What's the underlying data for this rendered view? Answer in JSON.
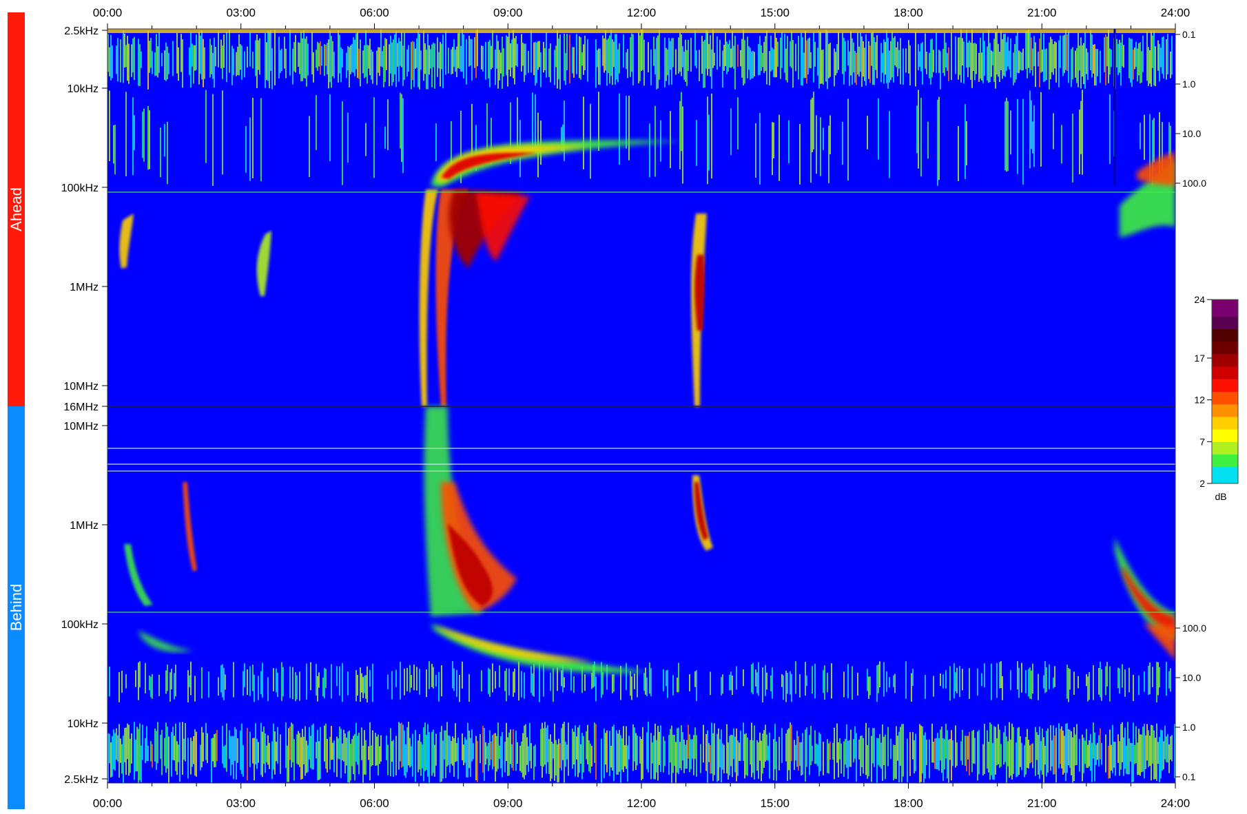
{
  "chart_data": {
    "type": "heatmap",
    "title": "",
    "colorbar_unit": "dB",
    "colorbar_ticks": [
      "24",
      "17",
      "12",
      "7",
      "2"
    ],
    "colorbar_range": [
      2,
      24
    ],
    "colormap": [
      "#00e0f0",
      "#40f040",
      "#b0f020",
      "#ffff00",
      "#ffd000",
      "#ff9000",
      "#ff5000",
      "#ff1000",
      "#d00000",
      "#a00000",
      "#700000",
      "#500000",
      "#5a0050",
      "#7a0070"
    ],
    "background_color": "#0000ff",
    "x_axis": {
      "ticks": [
        "00:00",
        "03:00",
        "06:00",
        "09:00",
        "12:00",
        "15:00",
        "18:00",
        "21:00",
        "24:00"
      ],
      "range_hours": [
        0,
        24
      ]
    },
    "panels": [
      {
        "name": "Ahead",
        "color": "#ff1a0a",
        "y_ticks_left": [
          "2.5kHz",
          "10kHz",
          "100kHz",
          "1MHz",
          "10MHz",
          "16MHz"
        ],
        "y_ticks_right": [
          "0.1",
          "1.0",
          "10.0",
          "100.0"
        ]
      },
      {
        "name": "Behind",
        "color": "#0a8cff",
        "y_ticks_left": [
          "10MHz",
          "1MHz",
          "100kHz",
          "10kHz",
          "2.5kHz"
        ],
        "y_ticks_right": [
          "100.0",
          "10.0",
          "1.0",
          "0.1"
        ]
      }
    ],
    "events_ahead": [
      {
        "t_hours": 0.4,
        "f_start": "400kHz",
        "f_end": "900kHz",
        "peak_db": 14
      },
      {
        "t_hours": 3.4,
        "f_start": "300kHz",
        "f_end": "1.3MHz",
        "peak_db": 12
      },
      {
        "t_hours": 7.5,
        "f_start": "60kHz",
        "f_end": "16MHz",
        "peak_db": 22
      },
      {
        "t_hours": 13.3,
        "f_start": "250kHz",
        "f_end": "16MHz",
        "peak_db": 18
      },
      {
        "t_hours": 23.5,
        "f_start": "30kHz",
        "f_end": "300kHz",
        "peak_db": 16
      }
    ],
    "events_behind": [
      {
        "t_hours": 0.6,
        "f_start": "100kHz",
        "f_end": "500kHz",
        "peak_db": 10
      },
      {
        "t_hours": 1.8,
        "f_start": "300kHz",
        "f_end": "5MHz",
        "peak_db": 13
      },
      {
        "t_hours": 7.8,
        "f_start": "40kHz",
        "f_end": "16MHz",
        "peak_db": 23
      },
      {
        "t_hours": 13.4,
        "f_start": "200kHz",
        "f_end": "16MHz",
        "peak_db": 18
      },
      {
        "t_hours": 23.5,
        "f_start": "30kHz",
        "f_end": "500kHz",
        "peak_db": 17
      }
    ]
  }
}
